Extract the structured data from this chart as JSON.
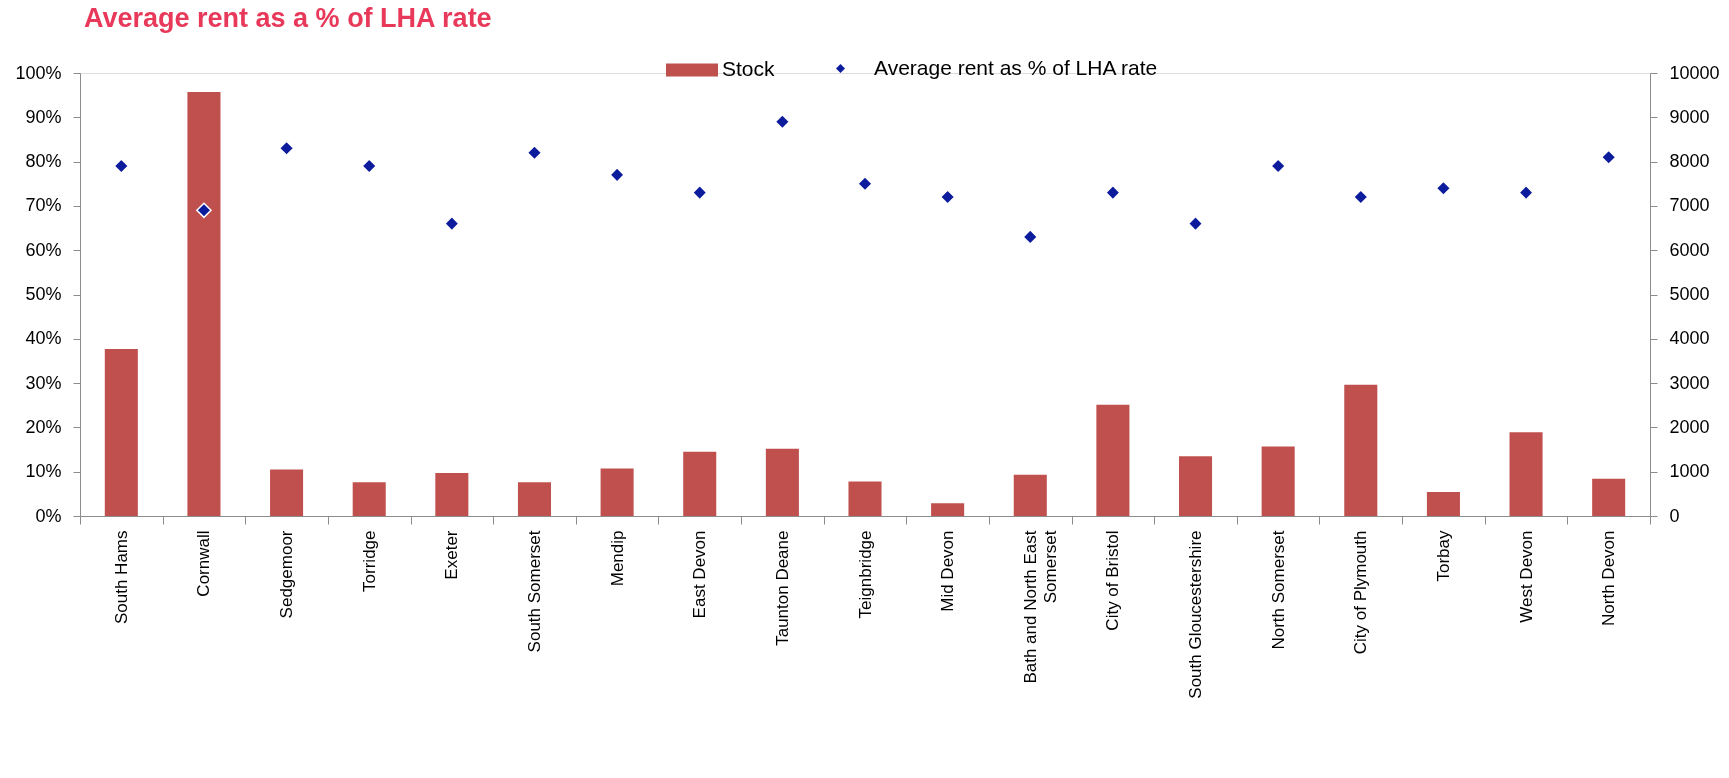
{
  "chart_data": {
    "type": "bar",
    "title": "Average rent as a % of LHA rate",
    "categories": [
      "South Hams",
      "Cornwall",
      "Sedgemoor",
      "Torridge",
      "Exeter",
      "South Somerset",
      "Mendip",
      "East Devon",
      "Taunton Deane",
      "Teignbridge",
      "Mid Devon",
      "Bath and North East Somerset",
      "City of Bristol",
      "South Gloucestershire",
      "North Somerset",
      "City of Plymouth",
      "Torbay",
      "West Devon",
      "North Devon"
    ],
    "series": [
      {
        "name": "Stock",
        "axis": "y2",
        "color": "#c0504d",
        "values": [
          3770,
          9570,
          1050,
          760,
          970,
          760,
          1070,
          1450,
          1520,
          780,
          290,
          930,
          2510,
          1350,
          1570,
          2960,
          540,
          1890,
          840
        ]
      },
      {
        "name": "Average rent as % of LHA rate",
        "type": "scatter",
        "color": "#0c1c9c",
        "values": [
          79,
          69,
          83,
          79,
          66,
          82,
          77,
          73,
          89,
          75,
          72,
          63,
          73,
          66,
          79,
          72,
          74,
          73,
          81
        ]
      }
    ],
    "marker": "diamond",
    "ylim": [
      0,
      100
    ],
    "yticks": [
      {
        "value": 0,
        "label": "0%"
      },
      {
        "value": 10,
        "label": "10%"
      },
      {
        "value": 20,
        "label": "20%"
      },
      {
        "value": 30,
        "label": "30%"
      },
      {
        "value": 40,
        "label": "40%"
      },
      {
        "value": 50,
        "label": "50%"
      },
      {
        "value": 60,
        "label": "60%"
      },
      {
        "value": 70,
        "label": "70%"
      },
      {
        "value": 80,
        "label": "80%"
      },
      {
        "value": 90,
        "label": "90%"
      },
      {
        "value": 100,
        "label": "100%"
      }
    ],
    "y2lim": [
      0,
      10000
    ],
    "y2ticks": [
      0,
      1000,
      2000,
      3000,
      4000,
      5000,
      6000,
      7000,
      8000,
      9000,
      10000
    ],
    "grid": false,
    "legend": "top"
  }
}
